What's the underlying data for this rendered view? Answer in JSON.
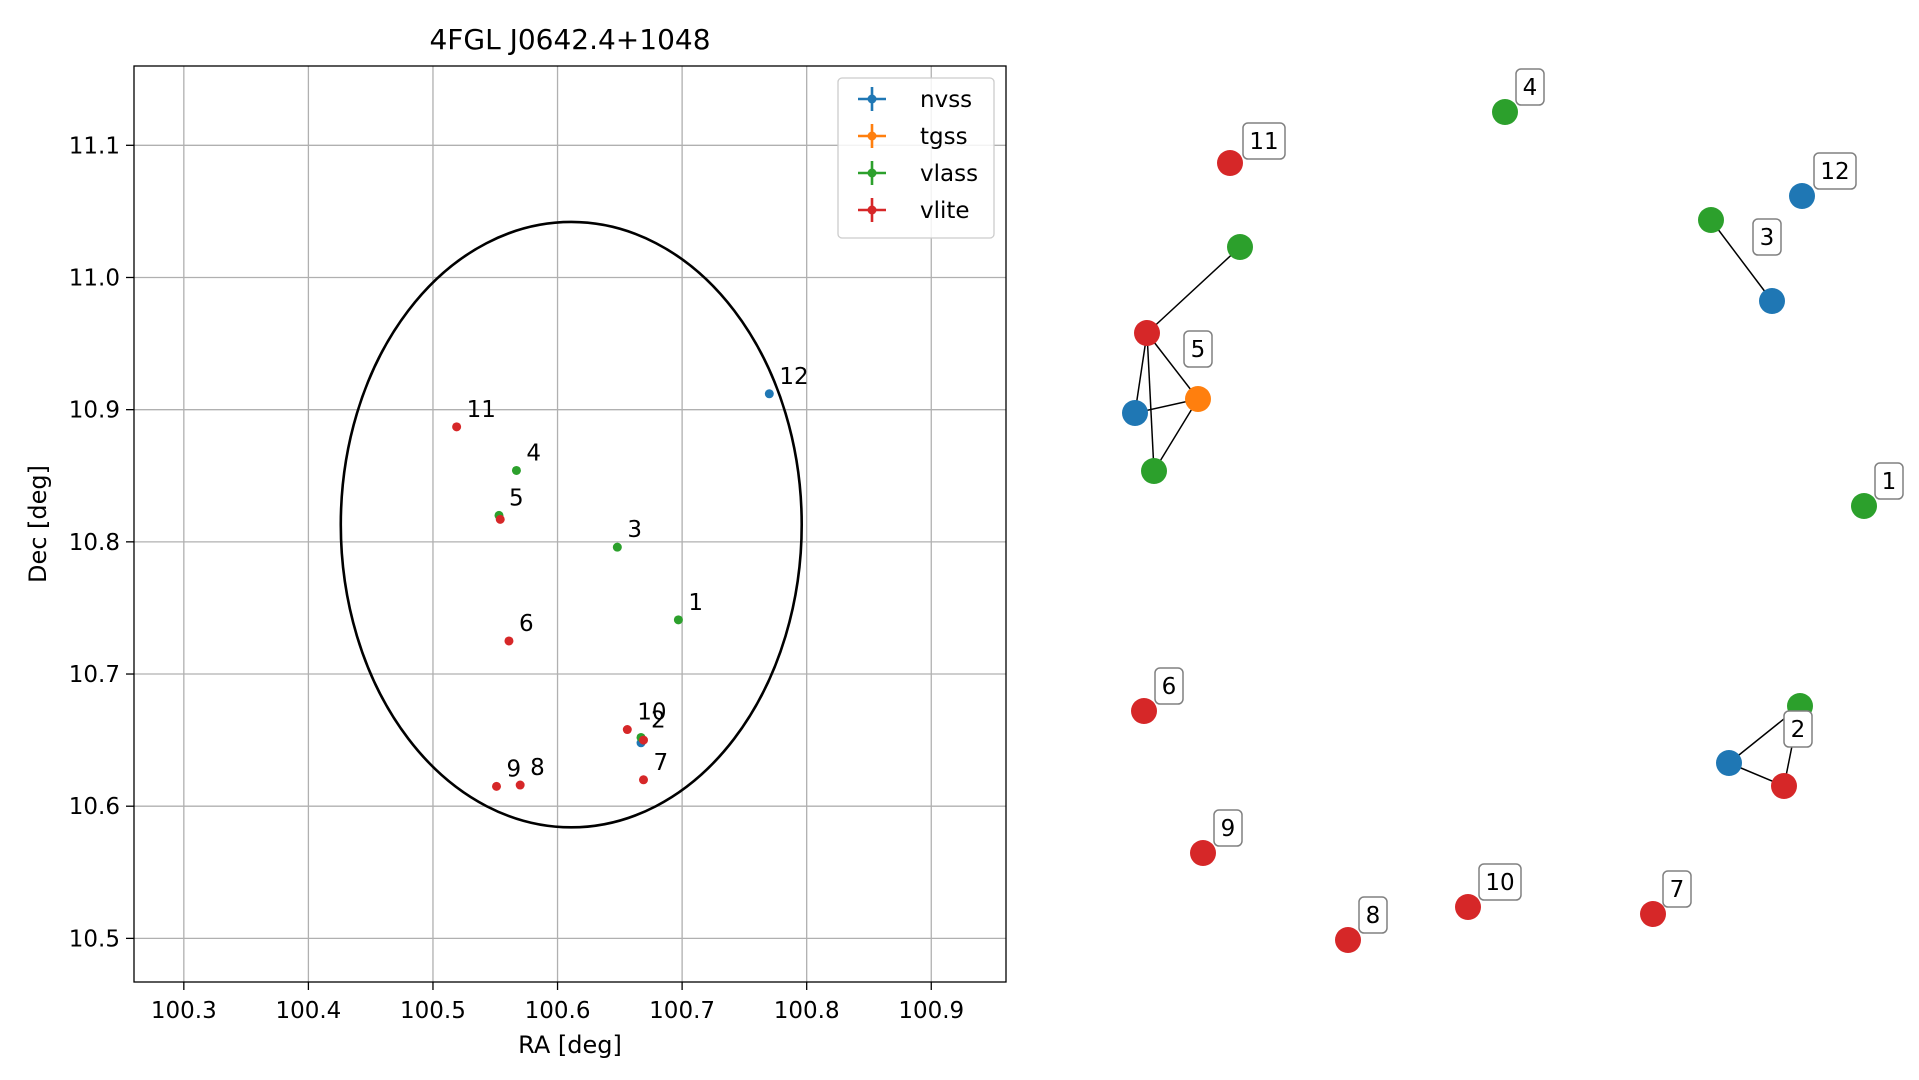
{
  "chart_data": [
    {
      "type": "scatter",
      "title": "4FGL J0642.4+1048",
      "xlabel": "RA [deg]",
      "ylabel": "Dec [deg]",
      "xlim": [
        100.26,
        100.96
      ],
      "ylim": [
        10.467,
        11.16
      ],
      "xticks": [
        "100.3",
        "100.4",
        "100.5",
        "100.6",
        "100.7",
        "100.8",
        "100.9"
      ],
      "yticks": [
        "10.5",
        "10.6",
        "10.7",
        "10.8",
        "10.9",
        "11.0",
        "11.1"
      ],
      "grid": true,
      "legend": "top-right",
      "ellipse": {
        "center_ra": 100.611,
        "center_dec": 10.813,
        "semi_ra": 0.185,
        "semi_dec": 0.229,
        "color": "#000000"
      },
      "series": [
        {
          "name": "nvss",
          "color": "#1f77b4",
          "points": [
            {
              "ra": 100.77,
              "dec": 10.912,
              "label": "12"
            },
            {
              "ra": 100.667,
              "dec": 10.648,
              "label": ""
            }
          ]
        },
        {
          "name": "tgss",
          "color": "#ff7f0e",
          "points": []
        },
        {
          "name": "vlass",
          "color": "#2ca02c",
          "points": [
            {
              "ra": 100.697,
              "dec": 10.741,
              "label": "1"
            },
            {
              "ra": 100.648,
              "dec": 10.796,
              "label": "3"
            },
            {
              "ra": 100.567,
              "dec": 10.854,
              "label": "4"
            },
            {
              "ra": 100.553,
              "dec": 10.82,
              "label": "5"
            },
            {
              "ra": 100.667,
              "dec": 10.652,
              "label": "2"
            }
          ]
        },
        {
          "name": "vlite",
          "color": "#d62728",
          "points": [
            {
              "ra": 100.519,
              "dec": 10.887,
              "label": "11"
            },
            {
              "ra": 100.554,
              "dec": 10.817,
              "label": ""
            },
            {
              "ra": 100.561,
              "dec": 10.725,
              "label": "6"
            },
            {
              "ra": 100.656,
              "dec": 10.658,
              "label": "10"
            },
            {
              "ra": 100.669,
              "dec": 10.65,
              "label": ""
            },
            {
              "ra": 100.669,
              "dec": 10.62,
              "label": "7"
            },
            {
              "ra": 100.57,
              "dec": 10.616,
              "label": "8"
            },
            {
              "ra": 100.551,
              "dec": 10.615,
              "label": "9"
            }
          ]
        }
      ]
    },
    {
      "type": "network",
      "nodes": [
        {
          "id": "n11",
          "color": "#d62728",
          "label": "11"
        },
        {
          "id": "n4",
          "color": "#2ca02c",
          "label": "4"
        },
        {
          "id": "n12",
          "color": "#1f77b4",
          "label": "12"
        },
        {
          "id": "n3g",
          "color": "#2ca02c",
          "label": ""
        },
        {
          "id": "n3b",
          "color": "#1f77b4",
          "label": "3"
        },
        {
          "id": "n5g1",
          "color": "#2ca02c",
          "label": ""
        },
        {
          "id": "n5r",
          "color": "#d62728",
          "label": ""
        },
        {
          "id": "n5o",
          "color": "#ff7f0e",
          "label": "5"
        },
        {
          "id": "n5b",
          "color": "#1f77b4",
          "label": ""
        },
        {
          "id": "n5g2",
          "color": "#2ca02c",
          "label": ""
        },
        {
          "id": "n1",
          "color": "#2ca02c",
          "label": "1"
        },
        {
          "id": "n6",
          "color": "#d62728",
          "label": "6"
        },
        {
          "id": "n2g",
          "color": "#2ca02c",
          "label": ""
        },
        {
          "id": "n2b",
          "color": "#1f77b4",
          "label": ""
        },
        {
          "id": "n2r",
          "color": "#d62728",
          "label": "2"
        },
        {
          "id": "n9",
          "color": "#d62728",
          "label": "9"
        },
        {
          "id": "n8",
          "color": "#d62728",
          "label": "8"
        },
        {
          "id": "n10",
          "color": "#d62728",
          "label": "10"
        },
        {
          "id": "n7",
          "color": "#d62728",
          "label": "7"
        }
      ],
      "edges": [
        [
          "n3g",
          "n3b"
        ],
        [
          "n5r",
          "n5g1"
        ],
        [
          "n5r",
          "n5b"
        ],
        [
          "n5r",
          "n5o"
        ],
        [
          "n5r",
          "n5g2"
        ],
        [
          "n5b",
          "n5o"
        ],
        [
          "n5o",
          "n5g2"
        ],
        [
          "n2g",
          "n2b"
        ],
        [
          "n2b",
          "n2r"
        ],
        [
          "n2r",
          "n2g"
        ]
      ]
    }
  ]
}
